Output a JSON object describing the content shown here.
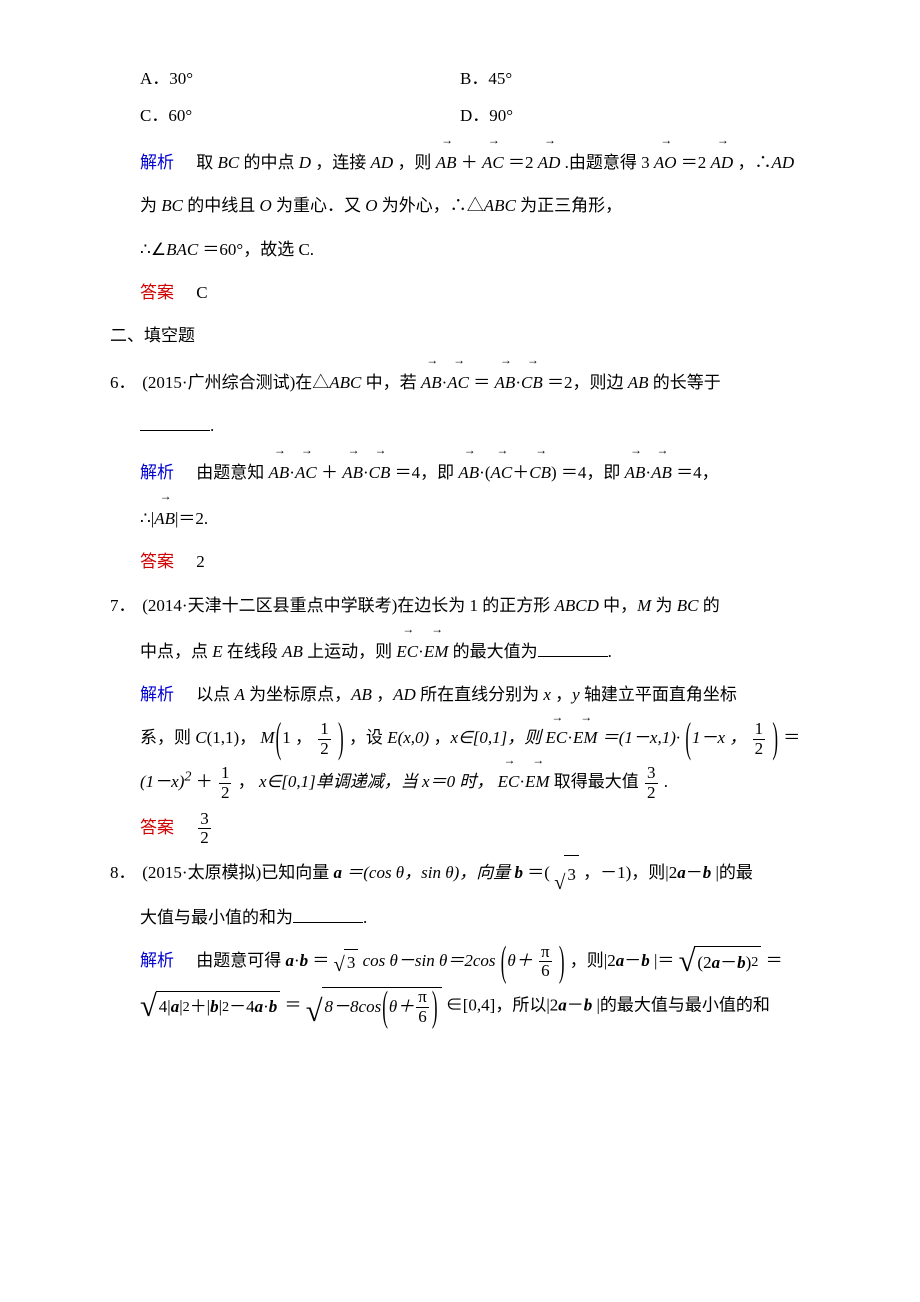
{
  "options": {
    "a": "A．30°",
    "b": "B．45°",
    "c": "C．60°",
    "d": "D．90°"
  },
  "labels": {
    "jiexi": "解析",
    "daan": "答案",
    "section2": "二、填空题"
  },
  "q5": {
    "jiexi_pre": "取 ",
    "jiexi_1": " 的中点 ",
    "jiexi_2": "，连接 ",
    "jiexi_3": "，则",
    "eq_plus": "＋",
    "eq_eq": "＝2",
    "period": ".由题意得 3",
    "eq_eq2": "＝2",
    "comma": "，∴",
    "line2_pre": "为 ",
    "line2_1": " 的中线且 ",
    "line2_2": " 为重心．又 ",
    "line2_3": " 为外心，∴△",
    "line2_4": " 为正三角形，",
    "line3": "∴∠",
    "line3_1": "＝60°，故选 C.",
    "answer": "C",
    "BC": "BC",
    "D": "D",
    "AD": "AD",
    "AB": "AB",
    "AC": "AC",
    "AO": "AO",
    "O": "O",
    "ABC": "ABC",
    "BAC": "BAC"
  },
  "q6": {
    "num": "6．",
    "src": "(2015·广州综合测试)在△",
    "tri": "ABC",
    "mid": " 中，若",
    "dot": "·",
    "eq": "＝",
    "val": "＝2，则边 ",
    "ab": "AB",
    "tail": " 的长等于",
    "jiexi_pre": "由题意知",
    "plus": "＋",
    "eq4_a": "＝4，即",
    "lpar": "(",
    "rpar": ")",
    "eq4_b": "＝4，即",
    "eq4_c": "＝4，",
    "line2_pre": "∴|",
    "line2_post": "|＝2.",
    "answer": "2",
    "AB": "AB",
    "AC": "AC",
    "CB": "CB"
  },
  "q7": {
    "num": "7．",
    "src": "(2014·天津十二区县重点中学联考)在边长为 1 的正方形 ",
    "sq": "ABCD",
    "mid": " 中，",
    "M": "M",
    "mid2": " 为 ",
    "BC": "BC",
    "mid3": " 的",
    "line2_a": "中点，点 ",
    "E": "E",
    "line2_b": " 在线段 ",
    "AB": "AB",
    "line2_c": " 上运动，则",
    "EC": "EC",
    "EM": "EM",
    "dot": "·",
    "line2_d": "的最大值为",
    "jiexi_1": "以点 ",
    "A": "A",
    "jiexi_2": " 为坐标原点，",
    "jiexi_3": "，",
    "AD": "AD",
    "jiexi_4": " 所在直线分别为 ",
    "x": "x",
    "y": "y",
    "jiexi_5": "，",
    "jiexi_6": " 轴建立平面直角坐标",
    "line_sys": "系，则 ",
    "C": "C",
    "c_coord": "(1,1)，",
    "m_open": "1 ，",
    "half_num": "1",
    "half_den": "2",
    "m_close": "，设 ",
    "e_coord": "(x,0)",
    "comma_x": "，",
    "xin": "x∈[0,1]，则",
    "eq": "＝(1－x,1)·",
    "minus": "1－x ，",
    "eq2": "＝",
    "line_last_a": "(1－x)",
    "sq2": "2",
    "plus": "＋",
    "comma": "，",
    "mono": "x∈[0,1]单调递减，当 x＝0 时，",
    "max": "取得最大值",
    "three": "3",
    "two": "2",
    "period": ".",
    "ans_num": "3",
    "ans_den": "2"
  },
  "q8": {
    "num": "8．",
    "src": "(2015·太原模拟)已知向量 ",
    "a": "a",
    "b": "b",
    "eq_a": "＝(cos θ，sin θ)，向量 ",
    "eq_b": "＝(",
    "three": "3",
    "eq_b2": "，－1)，则|2",
    "minus": "－",
    "eq_b3": "|的最",
    "line2": "大值与最小值的和为",
    "jiexi_1": "由题意可得 ",
    "dot": "·",
    "eq1": "＝",
    "cos": "cos θ－sin θ＝2cos",
    "theta": "θ＋",
    "pi": "π",
    "six": "6",
    "comma": "，则|2",
    "eq2": "|＝",
    "sq_open": "(2",
    "sq_close": ")",
    "pow2": "2",
    "eq3": "＝",
    "l3_a": "4|",
    "l3_b": "|",
    "plus": "＋|",
    "l3_c": "|",
    "minus4": "－4",
    "eq4": "＝",
    "eight": "8－8cos",
    "in": "∈[0,4]，所以|2",
    "tail": "|的最大值与最小值的和"
  }
}
